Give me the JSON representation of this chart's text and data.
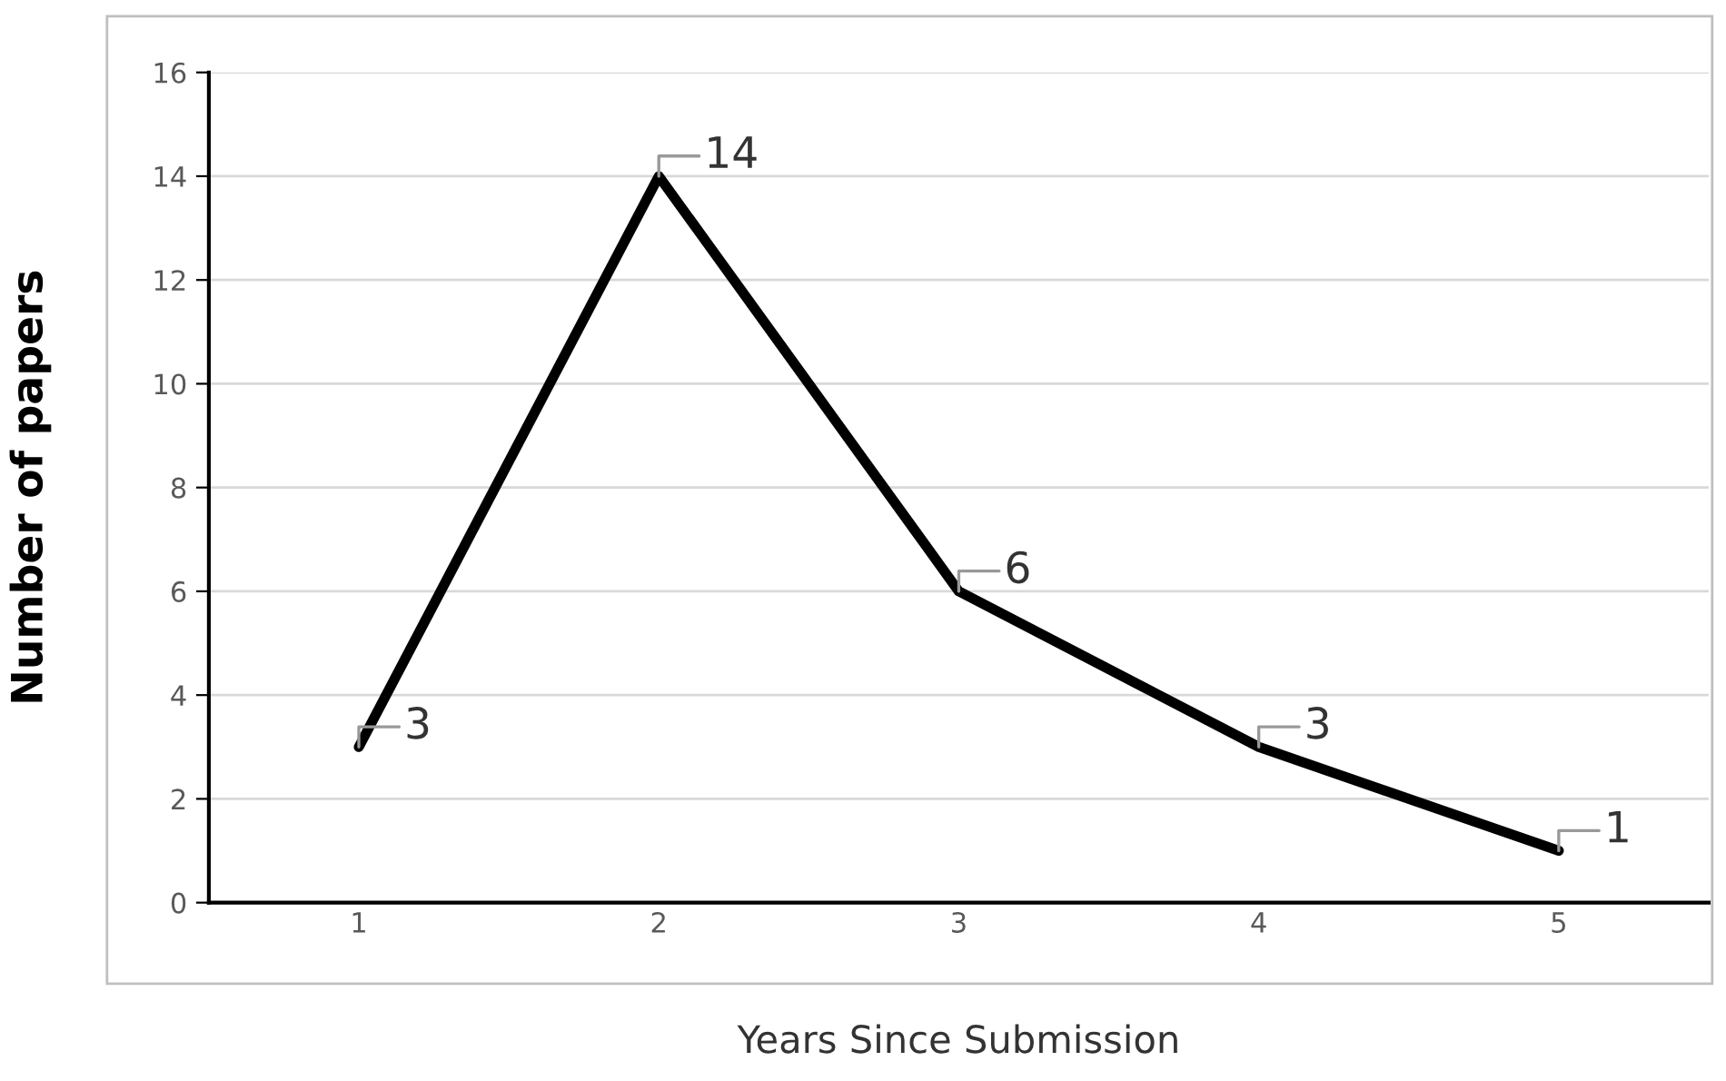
{
  "chart_data": {
    "type": "line",
    "xlabel": "Years Since Submission",
    "ylabel": "Number of papers",
    "categories": [
      "1",
      "2",
      "3",
      "4",
      "5"
    ],
    "series": [
      {
        "color": "#000000",
        "values": [
          3,
          14,
          6,
          3,
          1
        ]
      }
    ],
    "ylim": [
      0,
      16
    ],
    "yticks": [
      0,
      2,
      4,
      6,
      8,
      10,
      12,
      14,
      16
    ],
    "grid": "y",
    "marker": "none",
    "line_style": "solid",
    "data_labels": true
  }
}
